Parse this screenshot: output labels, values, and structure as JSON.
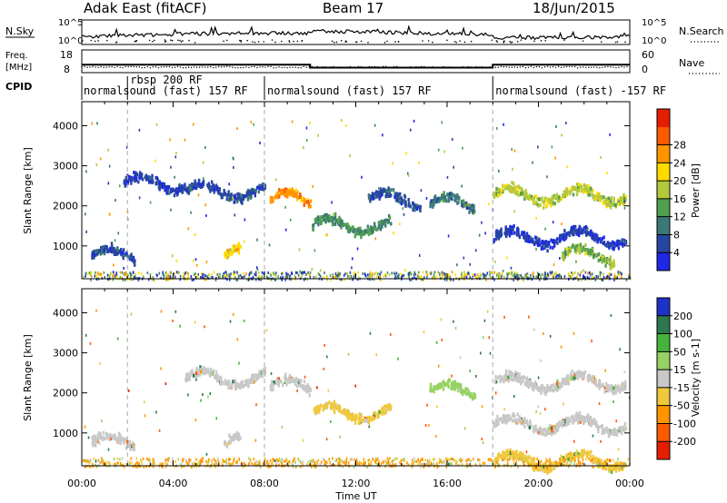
{
  "header": {
    "station": "Adak East (fitACF)",
    "beam": "Beam 17",
    "date": "18/Jun/2015"
  },
  "summary": {
    "nsky_label": "N.Sky",
    "nsearch_label": "N.Search",
    "freq_label_1": "Freq.",
    "freq_label_2": "[MHz]",
    "nave_label": "Nave",
    "cpid_label": "CPID",
    "left_ticks_top": [
      "10^5",
      "10^0"
    ],
    "right_ticks_top": [
      "10^5",
      "10^0"
    ],
    "left_ticks_freq": [
      "18",
      "8"
    ],
    "right_ticks_nave": [
      "60",
      "0"
    ],
    "cpid_segments": [
      {
        "label": "normalsound (fast) 157 RF",
        "start_h": 0
      },
      {
        "label": "rbsp 200 RF",
        "start_h": 2
      },
      {
        "label": "normalsound (fast) 157 RF",
        "start_h": 8
      },
      {
        "label": "normalsound (fast) -157 RF",
        "start_h": 18
      }
    ],
    "freq_levels": [
      {
        "from_h": 0,
        "to_h": 10,
        "mhz": 11.5
      },
      {
        "from_h": 10,
        "to_h": 18,
        "mhz": 10.2
      },
      {
        "from_h": 18,
        "to_h": 24,
        "mhz": 11.5
      }
    ]
  },
  "axes": {
    "x_label": "Time UT",
    "x_ticks": [
      "00:00",
      "04:00",
      "08:00",
      "12:00",
      "16:00",
      "20:00",
      "00:00"
    ],
    "y_label": "Slant Range [km]",
    "y_ticks": [
      "1000",
      "2000",
      "3000",
      "4000"
    ]
  },
  "power_colorbar": {
    "title": "Power [dB]",
    "ticks": [
      "4",
      "8",
      "12",
      "16",
      "20",
      "24",
      "28"
    ],
    "colors": [
      "#1e28e6",
      "#2846a0",
      "#3c7878",
      "#50a050",
      "#b4c83c",
      "#ffdc00",
      "#ff9600",
      "#ff5a00",
      "#e61e00"
    ]
  },
  "velocity_colorbar": {
    "title": "Velocity [m s-1]",
    "ticks": [
      "200",
      "100",
      "50",
      "15",
      "-15",
      "-50",
      "-100",
      "-200"
    ],
    "colors": [
      "#1e32c8",
      "#2d7850",
      "#46b43c",
      "#96d264",
      "#c8c8c8",
      "#f0c83c",
      "#ff9600",
      "#ff5a00",
      "#e61e00"
    ]
  },
  "chart_data": [
    {
      "type": "heatmap",
      "title": "Power [dB]",
      "xlabel": "Time UT",
      "ylabel": "Slant Range [km]",
      "xlim_hours": [
        0,
        24
      ],
      "ylim_km": [
        180,
        4600
      ],
      "features": [
        {
          "t_start": 0.4,
          "t_end": 2.3,
          "range_km": 800,
          "power_db": 6
        },
        {
          "t_start": 1.8,
          "t_end": 4.5,
          "range_km": 2600,
          "power_db": 5
        },
        {
          "t_start": 4.5,
          "t_end": 8.0,
          "range_km": 2400,
          "power_db": 6
        },
        {
          "t_start": 6.2,
          "t_end": 6.9,
          "range_km": 800,
          "power_db": 22
        },
        {
          "t_start": 8.2,
          "t_end": 10.0,
          "range_km": 2200,
          "power_db": 26
        },
        {
          "t_start": 10.0,
          "t_end": 13.5,
          "range_km": 1550,
          "power_db": 12
        },
        {
          "t_start": 12.5,
          "t_end": 14.8,
          "range_km": 2200,
          "power_db": 7
        },
        {
          "t_start": 15.2,
          "t_end": 17.2,
          "range_km": 2100,
          "power_db": 10
        },
        {
          "t_start": 18.0,
          "t_end": 23.8,
          "range_km": 2300,
          "power_db": 18
        },
        {
          "t_start": 18.0,
          "t_end": 23.8,
          "range_km": 1250,
          "power_db": 4
        },
        {
          "t_start": 21.0,
          "t_end": 23.3,
          "range_km": 800,
          "power_db": 16
        }
      ]
    },
    {
      "type": "heatmap",
      "title": "Velocity [m s-1]",
      "xlabel": "Time UT",
      "ylabel": "Slant Range [km]",
      "xlim_hours": [
        0,
        24
      ],
      "ylim_km": [
        180,
        4600
      ],
      "features": [
        {
          "t_start": 0.4,
          "t_end": 2.3,
          "range_km": 800,
          "velocity_ms": 0
        },
        {
          "t_start": 4.5,
          "t_end": 8.0,
          "range_km": 2400,
          "velocity_ms": 0
        },
        {
          "t_start": 6.2,
          "t_end": 6.9,
          "range_km": 800,
          "velocity_ms": 0
        },
        {
          "t_start": 8.2,
          "t_end": 10.0,
          "range_km": 2200,
          "velocity_ms": 0
        },
        {
          "t_start": 10.0,
          "t_end": 13.5,
          "range_km": 1550,
          "velocity_ms": -20
        },
        {
          "t_start": 15.2,
          "t_end": 17.2,
          "range_km": 2100,
          "velocity_ms": 30
        },
        {
          "t_start": 18.0,
          "t_end": 23.8,
          "range_km": 2300,
          "velocity_ms": 0
        },
        {
          "t_start": 18.0,
          "t_end": 23.8,
          "range_km": 1250,
          "velocity_ms": 0
        },
        {
          "t_start": 18.0,
          "t_end": 23.8,
          "range_km": 350,
          "velocity_ms": -40
        }
      ]
    }
  ]
}
